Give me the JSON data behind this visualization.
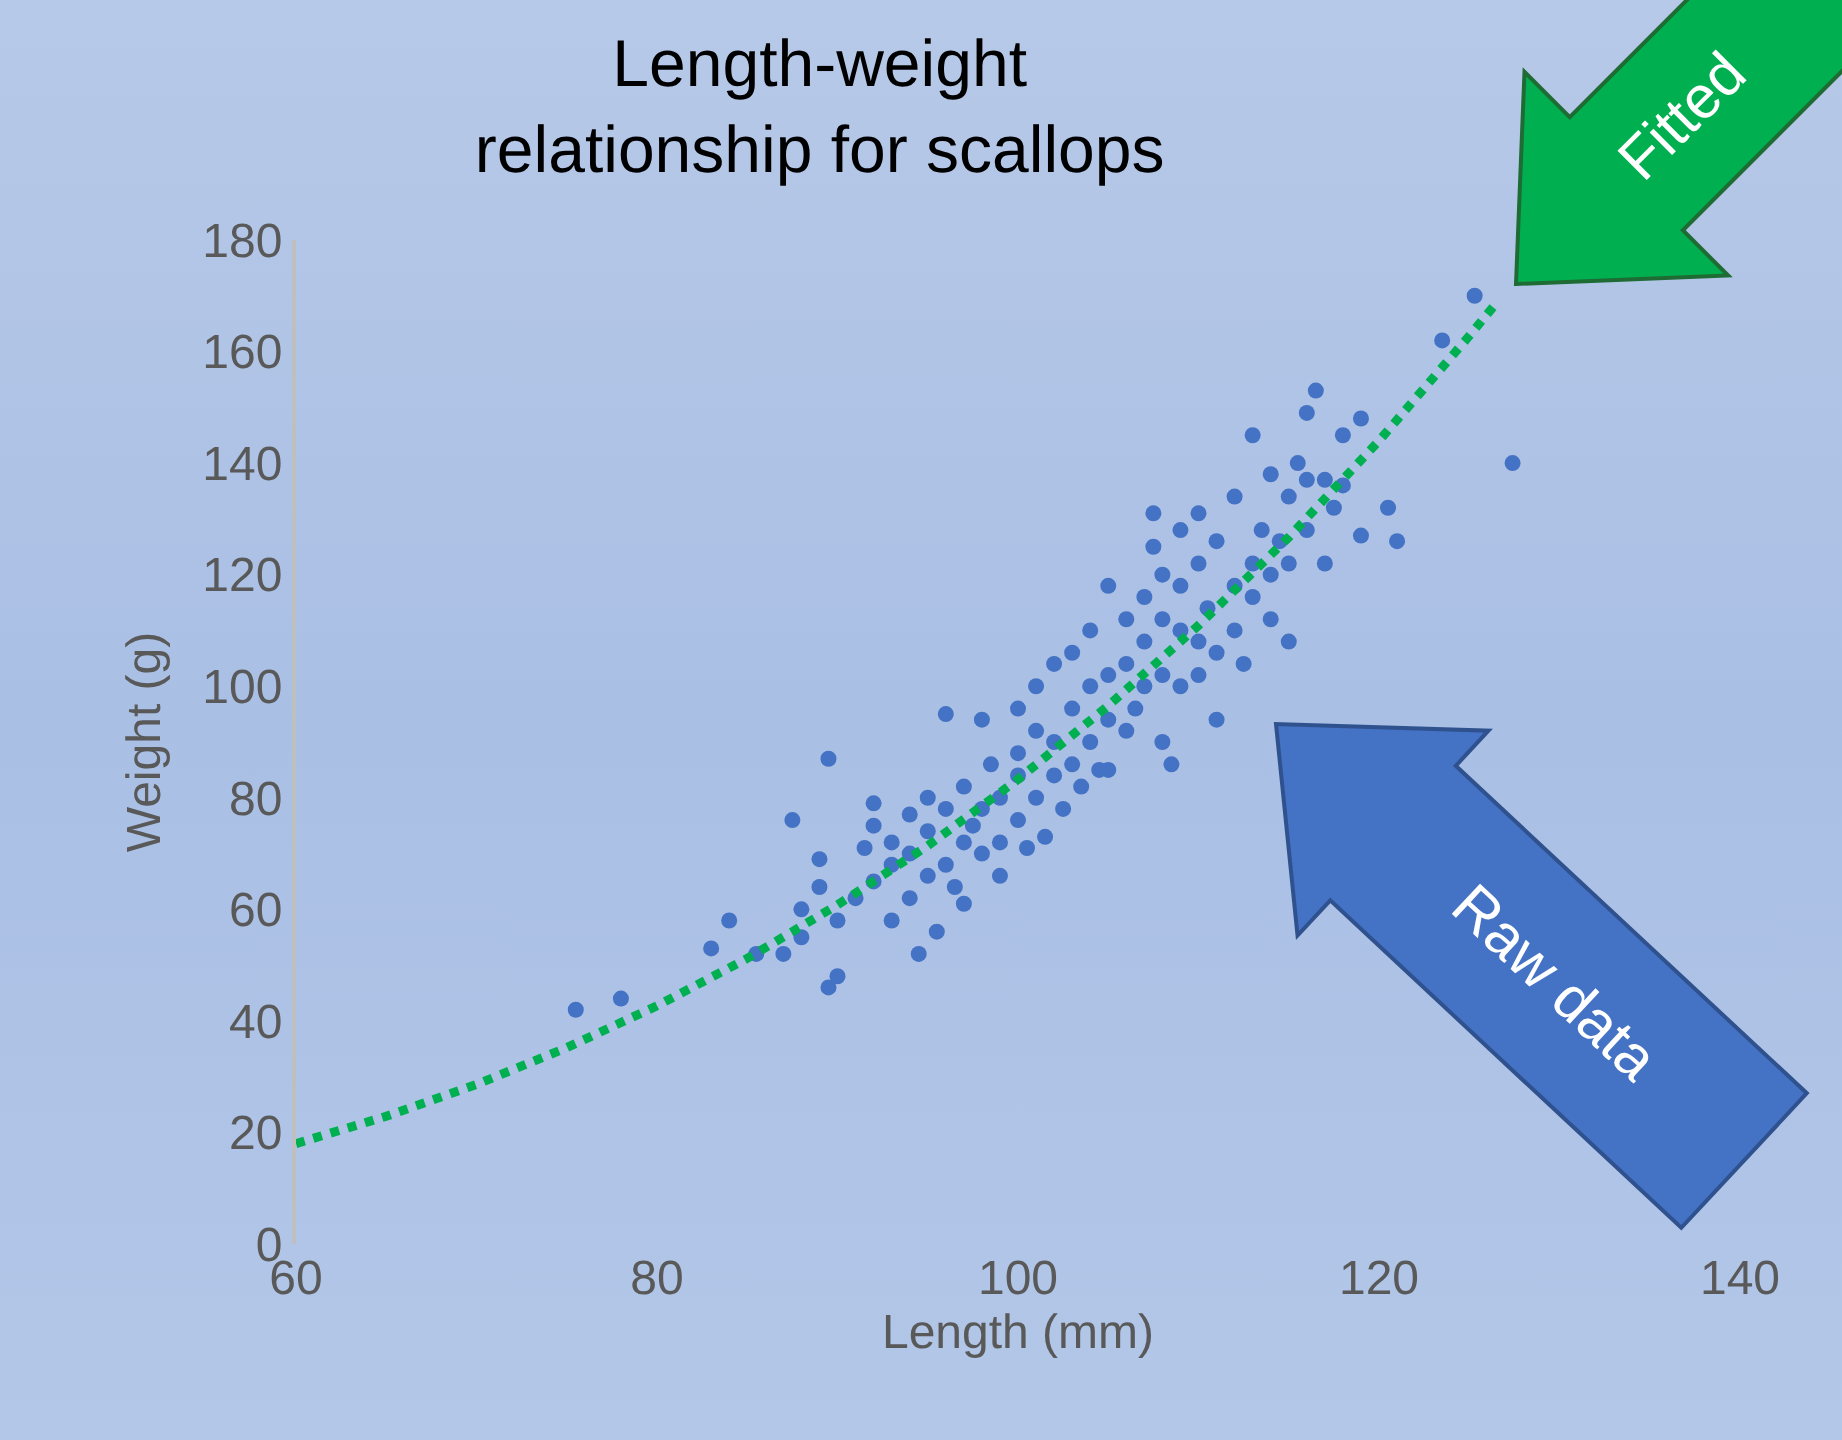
{
  "chart_data": {
    "type": "scatter",
    "title": "Length-weight relationship for scallops",
    "xlabel": "Length (mm)",
    "ylabel": "Weight (g)",
    "xlim": [
      60,
      140
    ],
    "xticks": [
      60,
      80,
      100,
      120,
      140
    ],
    "ylim": [
      0,
      180
    ],
    "yticks": [
      0,
      20,
      40,
      60,
      80,
      100,
      120,
      140,
      160,
      180
    ],
    "grid": false,
    "series": [
      {
        "color": "#4472c4",
        "marker": "circle",
        "x": [
          75.5,
          78,
          83,
          84,
          85.5,
          87,
          87.5,
          88,
          88,
          89,
          89,
          89.5,
          89.5,
          90,
          90,
          91,
          91.5,
          92,
          92,
          92,
          93,
          93,
          93,
          94,
          94,
          94,
          94.5,
          95,
          95,
          95,
          95.5,
          96,
          96,
          96,
          96.5,
          97,
          97,
          97,
          97.5,
          98,
          98,
          98,
          98.5,
          99,
          99,
          99,
          100,
          100,
          100,
          100,
          100.5,
          101,
          101,
          101,
          101.5,
          102,
          102,
          102,
          102.5,
          103,
          103,
          103,
          103.5,
          104,
          104,
          104,
          104.5,
          105,
          105,
          105,
          105,
          106,
          106,
          106,
          106.5,
          107,
          107,
          107,
          107.5,
          107.5,
          108,
          108,
          108,
          108,
          108.5,
          109,
          109,
          109,
          109,
          110,
          110,
          110,
          110,
          110.5,
          111,
          111,
          111,
          112,
          112,
          112,
          112.5,
          113,
          113,
          113,
          113.5,
          114,
          114,
          114,
          114.5,
          115,
          115,
          115,
          115.5,
          116,
          116,
          116,
          116.5,
          117,
          117,
          117.5,
          118,
          118,
          119,
          119,
          120.5,
          121,
          123.5,
          125.3,
          127.4
        ],
        "values": [
          42,
          44,
          53,
          58,
          52,
          52,
          76,
          55,
          60,
          64,
          69,
          46,
          87,
          48,
          58,
          62,
          71,
          65,
          75,
          79,
          58,
          68,
          72,
          62,
          70,
          77,
          52,
          66,
          74,
          80,
          56,
          68,
          95,
          78,
          64,
          72,
          82,
          61,
          75,
          70,
          78,
          94,
          86,
          72,
          80,
          66,
          76,
          84,
          88,
          96,
          71,
          80,
          92,
          100,
          73,
          84,
          90,
          104,
          78,
          86,
          96,
          106,
          82,
          90,
          100,
          110,
          85,
          94,
          102,
          118,
          85,
          92,
          104,
          112,
          96,
          100,
          108,
          116,
          125,
          131,
          102,
          112,
          120,
          90,
          86,
          100,
          110,
          118,
          128,
          102,
          108,
          122,
          131,
          114,
          106,
          126,
          94,
          110,
          118,
          134,
          104,
          116,
          122,
          145,
          128,
          112,
          120,
          138,
          126,
          122,
          134,
          108,
          140,
          128,
          137,
          149,
          153,
          122,
          137,
          132,
          145,
          136,
          148,
          127,
          132,
          126,
          162,
          170,
          140
        ]
      },
      {
        "type": "line",
        "color": "#00b050",
        "line_style": "dotted",
        "marker": "none",
        "x": [
          60,
          65,
          70,
          75,
          80,
          85,
          90,
          95,
          100,
          105,
          110,
          115,
          120,
          125,
          126.5
        ],
        "values": [
          18,
          22.9,
          28.6,
          35.2,
          42.7,
          51.2,
          60.8,
          71.4,
          83.3,
          96.5,
          110.9,
          126.7,
          144,
          162.8,
          168.7
        ]
      }
    ],
    "annotations": [
      "Fitted",
      "Raw data"
    ]
  }
}
